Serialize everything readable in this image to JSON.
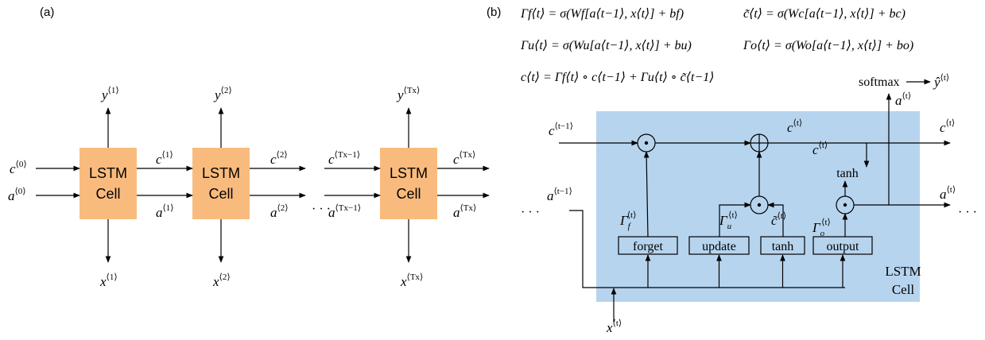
{
  "panel_a": {
    "label": "(a)",
    "cells": [
      {
        "line1": "LSTM",
        "line2": "Cell"
      },
      {
        "line1": "LSTM",
        "line2": "Cell"
      },
      {
        "line1": "LSTM",
        "line2": "Cell"
      }
    ],
    "ellipsis": "· · ·",
    "labels": [
      {
        "base": "c",
        "sup": "⟨0⟩"
      },
      {
        "base": "a",
        "sup": "⟨0⟩"
      },
      {
        "base": "c",
        "sup": "⟨1⟩"
      },
      {
        "base": "a",
        "sup": "⟨1⟩"
      },
      {
        "base": "c",
        "sup": "⟨2⟩"
      },
      {
        "base": "a",
        "sup": "⟨2⟩"
      },
      {
        "base": "c",
        "sup": "⟨Tx−1⟩"
      },
      {
        "base": "a",
        "sup": "⟨Tx−1⟩"
      },
      {
        "base": "c",
        "sup": "⟨Tx⟩"
      },
      {
        "base": "a",
        "sup": "⟨Tx⟩"
      },
      {
        "base": "y",
        "sup": "⟨1⟩"
      },
      {
        "base": "y",
        "sup": "⟨2⟩"
      },
      {
        "base": "y",
        "sup": "⟨Tx⟩"
      },
      {
        "base": "x",
        "sup": "⟨1⟩"
      },
      {
        "base": "x",
        "sup": "⟨2⟩"
      },
      {
        "base": "x",
        "sup": "⟨Tx⟩"
      }
    ]
  },
  "panel_b": {
    "label": "(b)",
    "equations": [
      "Γf⟨t⟩ = σ(Wf[a⟨t−1⟩, x⟨t⟩] + bf)",
      "c̃⟨t⟩ = σ(Wc[a⟨t−1⟩, x⟨t⟩] + bc)",
      "Γu⟨t⟩ = σ(Wu[a⟨t−1⟩, x⟨t⟩] + bu)",
      "Γo⟨t⟩ = σ(Wo[a⟨t−1⟩, x⟨t⟩] + bo)",
      "c⟨t⟩ = Γf⟨t⟩ ∘ c⟨t−1⟩ + Γu⟨t⟩ ∘ c̃⟨t−1⟩"
    ],
    "cell": {
      "line1": "LSTM",
      "line2": "Cell"
    },
    "gates": [
      "forget",
      "update",
      "tanh",
      "output"
    ],
    "tanh_label": "tanh",
    "softmax": "softmax",
    "ellipsis_left": "· · ·",
    "ellipsis_right": "· · ·",
    "labels": [
      {
        "base": "c",
        "sup": "⟨t−1⟩"
      },
      {
        "base": "c",
        "sup": "⟨t⟩"
      },
      {
        "base": "c",
        "sup": "⟨t⟩"
      },
      {
        "base": "c",
        "sup": "⟨t⟩"
      },
      {
        "base": "a",
        "sup": "⟨t⟩"
      },
      {
        "base": "ŷ",
        "sup": "⟨t⟩"
      },
      {
        "base": "a",
        "sup": "⟨t⟩"
      },
      {
        "base": "a",
        "sup": "⟨t−1⟩"
      },
      {
        "base": "Γ",
        "sub": "f",
        "sup": "⟨t⟩"
      },
      {
        "base": "Γ",
        "sub": "u",
        "sup": "⟨t⟩"
      },
      {
        "base": "c̃",
        "sup": "⟨t⟩"
      },
      {
        "base": "Γ",
        "sub": "o",
        "sup": "⟨t⟩"
      },
      {
        "base": "x",
        "sup": "⟨t⟩"
      }
    ]
  }
}
